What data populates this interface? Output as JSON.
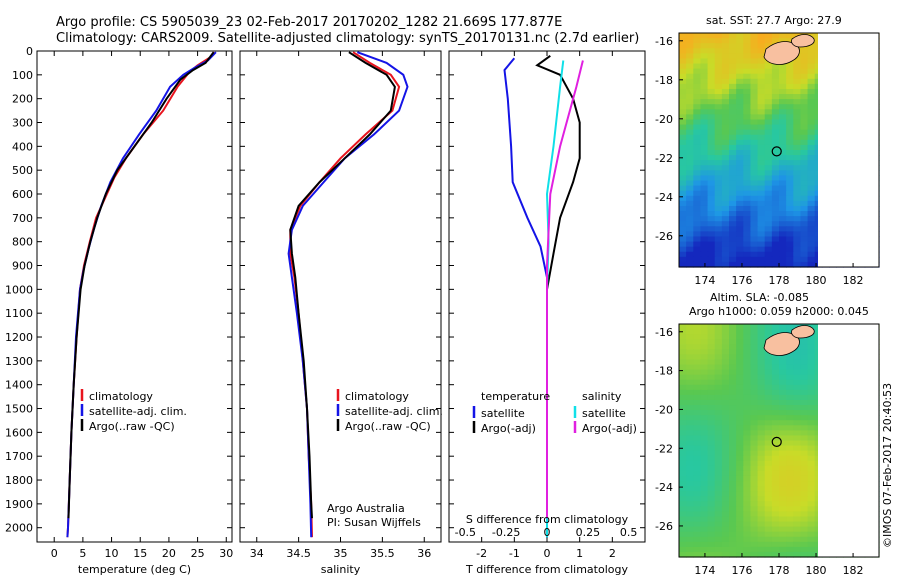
{
  "title": {
    "line1": "Argo profile: CS 5905039_23 02-Feb-2017 20170202_1282 21.669S 177.877E",
    "line2": "Climatology: CARS2009. Satellite-adjusted climatology: synTS_20170131.nc (2.7d earlier)"
  },
  "colors": {
    "climatology": "#e8141e",
    "satellite": "#1414e6",
    "argo": "#000000",
    "sat_s": "#10e0e8",
    "argo_s": "#e020e0"
  },
  "chart_data": [
    {
      "type": "line",
      "panel": "temperature",
      "xlabel": "temperature (deg C)",
      "xlim": [
        -3,
        31
      ],
      "ylim": [
        2060,
        0
      ],
      "xticks": [
        0,
        5,
        10,
        15,
        20,
        25,
        30
      ],
      "ytick_labels": [
        0,
        100,
        200,
        300,
        400,
        500,
        600,
        700,
        800,
        900,
        1000,
        1100,
        1200,
        1300,
        1400,
        1500,
        1600,
        1700,
        1800,
        1900,
        2000
      ],
      "legend": [
        "climatology",
        "satellite-adj. clim.",
        "Argo(..raw -QC)"
      ],
      "series": [
        {
          "name": "climatology",
          "color_key": "climatology",
          "points": [
            [
              27.9,
              5
            ],
            [
              27.3,
              25
            ],
            [
              25,
              60
            ],
            [
              23.5,
              90
            ],
            [
              21.5,
              150
            ],
            [
              19,
              250
            ],
            [
              15.5,
              350
            ],
            [
              12.5,
              450
            ],
            [
              10.5,
              530
            ],
            [
              8.8,
              620
            ],
            [
              7.3,
              700
            ],
            [
              6.2,
              800
            ],
            [
              5.2,
              900
            ],
            [
              4.5,
              1000
            ],
            [
              3.9,
              1200
            ],
            [
              3.4,
              1400
            ],
            [
              3.0,
              1600
            ],
            [
              2.7,
              1800
            ],
            [
              2.4,
              2000
            ],
            [
              2.3,
              2040
            ]
          ]
        },
        {
          "name": "satellite-adj. clim.",
          "color_key": "satellite",
          "points": [
            [
              28.2,
              5
            ],
            [
              26.8,
              40
            ],
            [
              24.5,
              70
            ],
            [
              22.5,
              100
            ],
            [
              20.2,
              150
            ],
            [
              17.8,
              250
            ],
            [
              14.8,
              350
            ],
            [
              12.0,
              450
            ],
            [
              9.8,
              550
            ],
            [
              8.2,
              650
            ],
            [
              7.0,
              740
            ],
            [
              6.0,
              830
            ],
            [
              5.1,
              920
            ],
            [
              4.5,
              1000
            ],
            [
              3.8,
              1200
            ],
            [
              3.4,
              1400
            ],
            [
              3.0,
              1600
            ],
            [
              2.7,
              1800
            ],
            [
              2.4,
              2000
            ],
            [
              2.3,
              2040
            ]
          ]
        },
        {
          "name": "Argo(..raw -QC)",
          "color_key": "argo",
          "points": [
            [
              27.8,
              5
            ],
            [
              26.4,
              50
            ],
            [
              24.2,
              80
            ],
            [
              22.0,
              120
            ],
            [
              19.6,
              200
            ],
            [
              17.0,
              300
            ],
            [
              14.0,
              400
            ],
            [
              11.0,
              500
            ],
            [
              9.0,
              600
            ],
            [
              7.5,
              700
            ],
            [
              6.3,
              800
            ],
            [
              5.3,
              900
            ],
            [
              4.6,
              1000
            ],
            [
              3.9,
              1200
            ],
            [
              3.4,
              1400
            ],
            [
              3.0,
              1600
            ],
            [
              2.7,
              1800
            ],
            [
              2.5,
              1960
            ]
          ]
        }
      ]
    },
    {
      "type": "line",
      "panel": "salinity",
      "xlabel": "salinity",
      "xlim": [
        33.8,
        36.2
      ],
      "ylim": [
        2060,
        0
      ],
      "xticks": [
        34,
        34.5,
        35,
        35.5,
        36
      ],
      "legend": [
        "climatology",
        "satellite-adj. clim.",
        "Argo(..raw -QC)"
      ],
      "series": [
        {
          "name": "climatology",
          "color_key": "climatology",
          "points": [
            [
              35.15,
              5
            ],
            [
              35.35,
              50
            ],
            [
              35.6,
              100
            ],
            [
              35.7,
              150
            ],
            [
              35.62,
              250
            ],
            [
              35.3,
              350
            ],
            [
              35.0,
              450
            ],
            [
              34.75,
              550
            ],
            [
              34.52,
              650
            ],
            [
              34.4,
              750
            ],
            [
              34.4,
              850
            ],
            [
              34.45,
              950
            ],
            [
              34.5,
              1100
            ],
            [
              34.55,
              1300
            ],
            [
              34.6,
              1500
            ],
            [
              34.62,
              1700
            ],
            [
              34.65,
              1900
            ],
            [
              34.66,
              2040
            ]
          ]
        },
        {
          "name": "satellite-adj. clim.",
          "color_key": "satellite",
          "points": [
            [
              35.2,
              5
            ],
            [
              35.55,
              50
            ],
            [
              35.75,
              100
            ],
            [
              35.8,
              150
            ],
            [
              35.7,
              250
            ],
            [
              35.4,
              350
            ],
            [
              35.05,
              450
            ],
            [
              34.8,
              550
            ],
            [
              34.55,
              650
            ],
            [
              34.42,
              750
            ],
            [
              34.38,
              850
            ],
            [
              34.42,
              950
            ],
            [
              34.48,
              1100
            ],
            [
              34.55,
              1300
            ],
            [
              34.6,
              1500
            ],
            [
              34.62,
              1700
            ],
            [
              34.64,
              1900
            ],
            [
              34.65,
              2040
            ]
          ]
        },
        {
          "name": "Argo(..raw -QC)",
          "color_key": "argo",
          "points": [
            [
              35.1,
              5
            ],
            [
              35.3,
              50
            ],
            [
              35.55,
              100
            ],
            [
              35.65,
              150
            ],
            [
              35.6,
              250
            ],
            [
              35.35,
              350
            ],
            [
              35.05,
              450
            ],
            [
              34.75,
              550
            ],
            [
              34.5,
              650
            ],
            [
              34.4,
              750
            ],
            [
              34.42,
              850
            ],
            [
              34.46,
              950
            ],
            [
              34.5,
              1100
            ],
            [
              34.56,
              1300
            ],
            [
              34.6,
              1500
            ],
            [
              34.63,
              1700
            ],
            [
              34.65,
              1900
            ],
            [
              34.66,
              1960
            ]
          ]
        }
      ]
    },
    {
      "type": "line",
      "panel": "differences",
      "xlabel": "T difference from climatology",
      "xlabel2": "S difference from climatology",
      "xlim": [
        -3,
        3
      ],
      "ylim": [
        2060,
        0
      ],
      "xticks": [
        -2,
        -1,
        0,
        1,
        2
      ],
      "xticks2_labels": [
        "-0.5",
        "-0.25",
        "0",
        "0.25",
        "0.5"
      ],
      "legend_titles": [
        "temperature",
        "salinity"
      ],
      "legend": [
        "satellite",
        "Argo(-adj)",
        "satellite",
        "Argo(-adj)"
      ],
      "series": [
        {
          "name": "T satellite",
          "color_key": "satellite",
          "points": [
            [
              -1,
              30
            ],
            [
              -1.3,
              80
            ],
            [
              -1.2,
              200
            ],
            [
              -1.1,
              400
            ],
            [
              -1.05,
              550
            ],
            [
              -0.6,
              700
            ],
            [
              -0.2,
              820
            ],
            [
              0,
              950
            ],
            [
              0,
              1300
            ],
            [
              0,
              2040
            ]
          ]
        },
        {
          "name": "T Argo(-adj)",
          "color_key": "argo",
          "points": [
            [
              0.1,
              20
            ],
            [
              -0.3,
              60
            ],
            [
              0.4,
              100
            ],
            [
              0.8,
              200
            ],
            [
              1.0,
              300
            ],
            [
              1.0,
              450
            ],
            [
              0.8,
              550
            ],
            [
              0.4,
              700
            ],
            [
              0.2,
              850
            ],
            [
              0,
              1000
            ],
            [
              0,
              1500
            ],
            [
              0,
              1960
            ]
          ]
        },
        {
          "name": "S satellite",
          "color_key": "sat_s",
          "points": [
            [
              0.5,
              40
            ],
            [
              0.4,
              150
            ],
            [
              0.2,
              400
            ],
            [
              0,
              600
            ],
            [
              0.05,
              800
            ],
            [
              0,
              1000
            ],
            [
              0,
              2040
            ]
          ]
        },
        {
          "name": "S Argo(-adj)",
          "color_key": "argo_s",
          "points": [
            [
              1.1,
              40
            ],
            [
              0.9,
              150
            ],
            [
              0.4,
              400
            ],
            [
              0.1,
              600
            ],
            [
              0,
              900
            ],
            [
              0,
              1960
            ]
          ]
        }
      ]
    }
  ],
  "panel3": {
    "credit1": "Argo Australia",
    "credit2": "PI: Susan Wijffels"
  },
  "maps": {
    "sst": {
      "title": "sat. SST: 27.7 Argo: 27.9",
      "yticks": [
        "-16",
        "-18",
        "-20",
        "-22",
        "-24",
        "-26"
      ],
      "xticks": [
        "174",
        "176",
        "178",
        "180",
        "182"
      ]
    },
    "sla": {
      "title1": "Altim. SLA: -0.085",
      "title2": "Argo h1000: 0.059 h2000: 0.045",
      "yticks": [
        "-16",
        "-18",
        "-20",
        "-22",
        "-24",
        "-26"
      ],
      "xticks": [
        "174",
        "176",
        "178",
        "180",
        "182"
      ]
    }
  },
  "stamp": "©IMOS 07-Feb-2017 20:40:53"
}
